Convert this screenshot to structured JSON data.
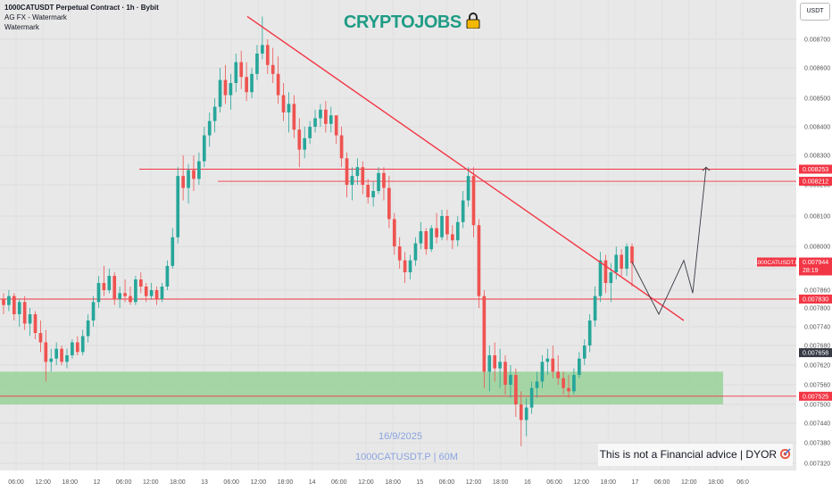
{
  "header": {
    "title": "1000CATUSDT Perpetual Contract · 1h · Bybit",
    "indicator": "AG FX - Watermark",
    "watermark_label": "Watermark"
  },
  "brand": {
    "text": "CRYPTOJOBS",
    "icon": "lock-icon"
  },
  "currency": "USDT",
  "disclaimer": "This is not a Financial advice | DYOR",
  "disclaimer_icon": "target-icon",
  "watermark": {
    "date": "16/9/2025",
    "symbol": "1000CATUSDT.P | 60M"
  },
  "colors": {
    "up": "#26a69a",
    "down": "#ef5350",
    "line": "#f23645",
    "zone": "#8fcf8f",
    "text_wm": "#8aa4e0"
  },
  "chart_data": {
    "type": "candlestick",
    "title": "1000CATUSDT Perpetual Contract · 1h · Bybit",
    "ylim": [
      0.0073,
      0.0088
    ],
    "y_ticks": [
      "0.007320",
      "0.007380",
      "0.007440",
      "0.007500",
      "0.007560",
      "0.007620",
      "0.007680",
      "0.007740",
      "0.007800",
      "0.007860",
      "0.007920",
      "0.008000",
      "0.008100",
      "0.008200",
      "0.008300",
      "0.008400",
      "0.008500",
      "0.008600",
      "0.008700"
    ],
    "x_ticks": [
      "06:00",
      "12:00",
      "18:00",
      "12",
      "06:00",
      "12:00",
      "18:00",
      "13",
      "06:00",
      "12:00",
      "18:00",
      "14",
      "06:00",
      "12:00",
      "18:00",
      "15",
      "06:00",
      "12:00",
      "18:00",
      "16",
      "06:00",
      "12:00",
      "18:00",
      "17",
      "06:00",
      "12:00",
      "18:00",
      "06:0"
    ],
    "price_labels": [
      {
        "text": "0.008253",
        "value": 0.008253,
        "color": "#f23645"
      },
      {
        "text": "0.008212",
        "value": 0.008212,
        "color": "#f23645"
      },
      {
        "text": "0.007944",
        "value": 0.007944,
        "color": "#f23645",
        "symbol": "1000CATUSDT.P",
        "countdown": "28:19"
      },
      {
        "text": "0.007830",
        "value": 0.00783,
        "color": "#f23645"
      },
      {
        "text": "0.007658",
        "value": 0.007658,
        "color": "#363a45"
      },
      {
        "text": "0.007525",
        "value": 0.007525,
        "color": "#f23645"
      }
    ],
    "horizontal_lines": [
      0.008253,
      0.008212,
      0.00783,
      0.007525
    ],
    "support_zone": [
      0.0075,
      0.0076
    ],
    "trendline": [
      [
        0,
        0.00878
      ],
      [
        1,
        0.00776
      ]
    ],
    "projection": [
      0.007944,
      0.00778,
      0.00795,
      0.00785,
      0.00826
    ],
    "candles_ohlc": [
      [
        0.00783,
        0.00785,
        0.00778,
        0.00781
      ],
      [
        0.00781,
        0.00786,
        0.00779,
        0.00784
      ],
      [
        0.00784,
        0.00785,
        0.00776,
        0.00778
      ],
      [
        0.00778,
        0.00783,
        0.00774,
        0.00782
      ],
      [
        0.00782,
        0.00784,
        0.00773,
        0.00775
      ],
      [
        0.00775,
        0.0078,
        0.00771,
        0.00778
      ],
      [
        0.00778,
        0.00779,
        0.0077,
        0.00772
      ],
      [
        0.00772,
        0.00776,
        0.00766,
        0.00769
      ],
      [
        0.00769,
        0.00773,
        0.00757,
        0.00763
      ],
      [
        0.00763,
        0.00767,
        0.0076,
        0.00764
      ],
      [
        0.00764,
        0.00769,
        0.00762,
        0.00767
      ],
      [
        0.00767,
        0.00768,
        0.00762,
        0.00763
      ],
      [
        0.00763,
        0.00767,
        0.00761,
        0.00765
      ],
      [
        0.00765,
        0.0077,
        0.00764,
        0.00769
      ],
      [
        0.00769,
        0.00771,
        0.00765,
        0.00766
      ],
      [
        0.00766,
        0.00773,
        0.00765,
        0.00771
      ],
      [
        0.00771,
        0.00778,
        0.00769,
        0.00776
      ],
      [
        0.00776,
        0.00784,
        0.00774,
        0.00782
      ],
      [
        0.00782,
        0.0079,
        0.0078,
        0.00788
      ],
      [
        0.00788,
        0.00793,
        0.00784,
        0.00786
      ],
      [
        0.00786,
        0.00792,
        0.00785,
        0.0079
      ],
      [
        0.0079,
        0.00791,
        0.00781,
        0.00783
      ],
      [
        0.00783,
        0.00787,
        0.0078,
        0.00785
      ],
      [
        0.00785,
        0.00789,
        0.00782,
        0.00784
      ],
      [
        0.00784,
        0.00787,
        0.00781,
        0.00782
      ],
      [
        0.00782,
        0.0079,
        0.00781,
        0.00789
      ],
      [
        0.00789,
        0.00791,
        0.00785,
        0.00787
      ],
      [
        0.00787,
        0.00788,
        0.00782,
        0.00784
      ],
      [
        0.00784,
        0.00788,
        0.00783,
        0.00786
      ],
      [
        0.00786,
        0.00787,
        0.00781,
        0.00783
      ],
      [
        0.00783,
        0.00788,
        0.00782,
        0.00787
      ],
      [
        0.00787,
        0.00795,
        0.00786,
        0.00793
      ],
      [
        0.00793,
        0.00806,
        0.00792,
        0.00803
      ],
      [
        0.00803,
        0.00826,
        0.00801,
        0.00823
      ],
      [
        0.00823,
        0.0083,
        0.00815,
        0.00819
      ],
      [
        0.00819,
        0.00827,
        0.00814,
        0.00825
      ],
      [
        0.00825,
        0.0083,
        0.00818,
        0.00822
      ],
      [
        0.00822,
        0.00831,
        0.0082,
        0.00828
      ],
      [
        0.00828,
        0.0084,
        0.00826,
        0.00837
      ],
      [
        0.00837,
        0.00845,
        0.00833,
        0.00842
      ],
      [
        0.00842,
        0.0085,
        0.00838,
        0.00847
      ],
      [
        0.00847,
        0.0086,
        0.00845,
        0.00856
      ],
      [
        0.00856,
        0.00861,
        0.00848,
        0.00851
      ],
      [
        0.00851,
        0.00858,
        0.00846,
        0.00855
      ],
      [
        0.00855,
        0.00865,
        0.00852,
        0.00862
      ],
      [
        0.00862,
        0.00866,
        0.00853,
        0.00857
      ],
      [
        0.00857,
        0.00862,
        0.00849,
        0.00852
      ],
      [
        0.00852,
        0.0086,
        0.0085,
        0.00858
      ],
      [
        0.00858,
        0.00868,
        0.00856,
        0.00865
      ],
      [
        0.00865,
        0.00878,
        0.00863,
        0.00868
      ],
      [
        0.00868,
        0.0087,
        0.00858,
        0.00861
      ],
      [
        0.00861,
        0.00867,
        0.00855,
        0.00858
      ],
      [
        0.00858,
        0.00864,
        0.00848,
        0.00851
      ],
      [
        0.00851,
        0.00855,
        0.00842,
        0.00845
      ],
      [
        0.00845,
        0.00852,
        0.00838,
        0.00848
      ],
      [
        0.00848,
        0.00851,
        0.00836,
        0.00839
      ],
      [
        0.00839,
        0.00843,
        0.00826,
        0.00832
      ],
      [
        0.00832,
        0.0084,
        0.00829,
        0.00836
      ],
      [
        0.00836,
        0.00842,
        0.00834,
        0.0084
      ],
      [
        0.0084,
        0.00846,
        0.00838,
        0.00843
      ],
      [
        0.00843,
        0.00848,
        0.0084,
        0.00846
      ],
      [
        0.00846,
        0.00849,
        0.00838,
        0.00841
      ],
      [
        0.00841,
        0.00847,
        0.00838,
        0.00844
      ],
      [
        0.00844,
        0.00843,
        0.00834,
        0.00837
      ],
      [
        0.00837,
        0.0084,
        0.00826,
        0.00829
      ],
      [
        0.00829,
        0.00831,
        0.00816,
        0.0082
      ],
      [
        0.0082,
        0.00826,
        0.00815,
        0.00823
      ],
      [
        0.00823,
        0.00829,
        0.0082,
        0.00826
      ],
      [
        0.00826,
        0.00828,
        0.00817,
        0.0082
      ],
      [
        0.0082,
        0.00822,
        0.00814,
        0.00816
      ],
      [
        0.00816,
        0.00821,
        0.00813,
        0.00818
      ],
      [
        0.00818,
        0.00826,
        0.00817,
        0.00824
      ],
      [
        0.00824,
        0.00826,
        0.00815,
        0.00819
      ],
      [
        0.00819,
        0.00823,
        0.00806,
        0.00809
      ],
      [
        0.00809,
        0.00811,
        0.00797,
        0.008
      ],
      [
        0.008,
        0.00803,
        0.00792,
        0.00795
      ],
      [
        0.00795,
        0.00798,
        0.00788,
        0.00791
      ],
      [
        0.00791,
        0.00797,
        0.00789,
        0.00795
      ],
      [
        0.00795,
        0.00803,
        0.00793,
        0.00801
      ],
      [
        0.00801,
        0.00808,
        0.00799,
        0.00805
      ],
      [
        0.00805,
        0.00806,
        0.00797,
        0.00799
      ],
      [
        0.00799,
        0.00807,
        0.00798,
        0.00806
      ],
      [
        0.00806,
        0.00811,
        0.00801,
        0.00803
      ],
      [
        0.00803,
        0.00812,
        0.00802,
        0.0081
      ],
      [
        0.0081,
        0.00812,
        0.00802,
        0.00804
      ],
      [
        0.00804,
        0.00807,
        0.00799,
        0.00802
      ],
      [
        0.00802,
        0.0081,
        0.008,
        0.00808
      ],
      [
        0.00808,
        0.00818,
        0.00806,
        0.00815
      ],
      [
        0.00815,
        0.00826,
        0.00813,
        0.00823
      ],
      [
        0.00823,
        0.00826,
        0.00803,
        0.00807
      ],
      [
        0.00807,
        0.00809,
        0.0078,
        0.00784
      ],
      [
        0.00784,
        0.00786,
        0.00755,
        0.0076
      ],
      [
        0.0076,
        0.00768,
        0.00754,
        0.00765
      ],
      [
        0.00765,
        0.00769,
        0.00757,
        0.00761
      ],
      [
        0.00761,
        0.00767,
        0.00755,
        0.00763
      ],
      [
        0.00763,
        0.00765,
        0.00753,
        0.00756
      ],
      [
        0.00756,
        0.00762,
        0.00752,
        0.00759
      ],
      [
        0.00759,
        0.00761,
        0.00746,
        0.0075
      ],
      [
        0.0075,
        0.00754,
        0.00737,
        0.00745
      ],
      [
        0.00745,
        0.00752,
        0.0074,
        0.00749
      ],
      [
        0.00749,
        0.00757,
        0.00747,
        0.00755
      ],
      [
        0.00755,
        0.0076,
        0.00752,
        0.00757
      ],
      [
        0.00757,
        0.00765,
        0.00755,
        0.00763
      ],
      [
        0.00763,
        0.00767,
        0.00759,
        0.00764
      ],
      [
        0.00764,
        0.00768,
        0.00758,
        0.0076
      ],
      [
        0.0076,
        0.00765,
        0.00756,
        0.00758
      ],
      [
        0.00758,
        0.0076,
        0.00753,
        0.00755
      ],
      [
        0.00755,
        0.00759,
        0.00752,
        0.00754
      ],
      [
        0.00754,
        0.00761,
        0.00753,
        0.00759
      ],
      [
        0.00759,
        0.00766,
        0.00758,
        0.00764
      ],
      [
        0.00764,
        0.0077,
        0.00762,
        0.00768
      ],
      [
        0.00768,
        0.00778,
        0.00766,
        0.00776
      ],
      [
        0.00776,
        0.00787,
        0.00774,
        0.00784
      ],
      [
        0.00784,
        0.00798,
        0.00782,
        0.00795
      ],
      [
        0.00795,
        0.00797,
        0.00785,
        0.00788
      ],
      [
        0.00788,
        0.00794,
        0.00782,
        0.00791
      ],
      [
        0.00791,
        0.008,
        0.00789,
        0.00797
      ],
      [
        0.00797,
        0.00799,
        0.0079,
        0.00792
      ],
      [
        0.00792,
        0.00801,
        0.0079,
        0.008
      ],
      [
        0.008,
        0.00801,
        0.00787,
        0.00794
      ]
    ]
  }
}
